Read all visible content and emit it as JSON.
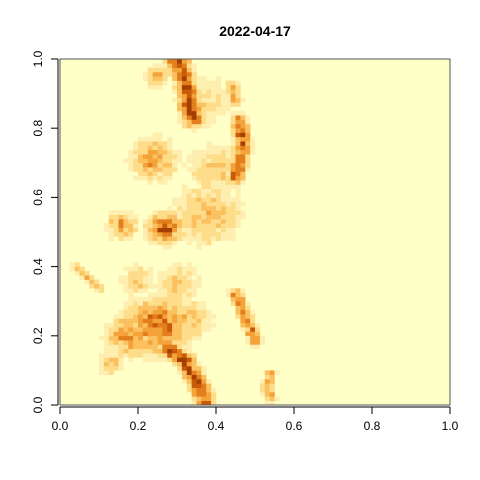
{
  "chart_data": {
    "type": "heatmap",
    "title": "2022-04-17",
    "xlabel": "",
    "ylabel": "",
    "xlim": [
      0,
      1
    ],
    "ylim": [
      0,
      1
    ],
    "x_ticks": [
      "0.0",
      "0.2",
      "0.4",
      "0.6",
      "0.8",
      "1.0"
    ],
    "y_ticks": [
      "0.0",
      "0.2",
      "0.4",
      "0.6",
      "0.8",
      "1.0"
    ],
    "background_color": "#FFFFC8",
    "colormap": [
      "#FFFFC8",
      "#FEEFB0",
      "#FDDC8A",
      "#FBC060",
      "#F4A23A",
      "#E27E1C",
      "#C85A08",
      "#A53F00"
    ],
    "grid": false,
    "features": [
      {
        "type": "line",
        "points": [
          [
            0.3,
            1.0
          ],
          [
            0.32,
            0.94
          ],
          [
            0.33,
            0.88
          ],
          [
            0.34,
            0.83
          ]
        ],
        "intensity": 0.95,
        "width": 0.018
      },
      {
        "type": "line",
        "points": [
          [
            0.46,
            0.82
          ],
          [
            0.47,
            0.76
          ],
          [
            0.46,
            0.7
          ],
          [
            0.45,
            0.66
          ]
        ],
        "intensity": 0.8,
        "width": 0.014
      },
      {
        "type": "line",
        "points": [
          [
            0.44,
            0.92
          ],
          [
            0.45,
            0.88
          ]
        ],
        "intensity": 0.55,
        "width": 0.012
      },
      {
        "type": "line",
        "points": [
          [
            0.28,
            0.16
          ],
          [
            0.32,
            0.13
          ],
          [
            0.34,
            0.09
          ],
          [
            0.36,
            0.05
          ],
          [
            0.37,
            0.01
          ]
        ],
        "intensity": 0.92,
        "width": 0.016
      },
      {
        "type": "line",
        "points": [
          [
            0.45,
            0.32
          ],
          [
            0.47,
            0.27
          ],
          [
            0.49,
            0.22
          ],
          [
            0.5,
            0.19
          ]
        ],
        "intensity": 0.68,
        "width": 0.012
      },
      {
        "type": "line",
        "points": [
          [
            0.54,
            0.09
          ],
          [
            0.53,
            0.05
          ],
          [
            0.54,
            0.02
          ]
        ],
        "intensity": 0.5,
        "width": 0.01
      },
      {
        "type": "line",
        "points": [
          [
            0.04,
            0.4
          ],
          [
            0.07,
            0.37
          ],
          [
            0.1,
            0.34
          ]
        ],
        "intensity": 0.45,
        "width": 0.008
      },
      {
        "type": "blob",
        "center": [
          0.25,
          0.23
        ],
        "radius": 0.055,
        "intensity": 0.72
      },
      {
        "type": "blob",
        "center": [
          0.18,
          0.2
        ],
        "radius": 0.04,
        "intensity": 0.62
      },
      {
        "type": "blob",
        "center": [
          0.27,
          0.51
        ],
        "radius": 0.03,
        "intensity": 0.85
      },
      {
        "type": "blob",
        "center": [
          0.16,
          0.52
        ],
        "radius": 0.025,
        "intensity": 0.6
      },
      {
        "type": "blob",
        "center": [
          0.24,
          0.71
        ],
        "radius": 0.04,
        "intensity": 0.55
      },
      {
        "type": "blob",
        "center": [
          0.25,
          0.95
        ],
        "radius": 0.02,
        "intensity": 0.55
      },
      {
        "type": "blob",
        "center": [
          0.38,
          0.55
        ],
        "radius": 0.06,
        "intensity": 0.42
      },
      {
        "type": "blob",
        "center": [
          0.4,
          0.68
        ],
        "radius": 0.05,
        "intensity": 0.35
      },
      {
        "type": "blob",
        "center": [
          0.37,
          0.88
        ],
        "radius": 0.05,
        "intensity": 0.3
      },
      {
        "type": "blob",
        "center": [
          0.3,
          0.35
        ],
        "radius": 0.04,
        "intensity": 0.35
      },
      {
        "type": "blob",
        "center": [
          0.33,
          0.25
        ],
        "radius": 0.04,
        "intensity": 0.4
      },
      {
        "type": "blob",
        "center": [
          0.2,
          0.36
        ],
        "radius": 0.03,
        "intensity": 0.35
      },
      {
        "type": "blob",
        "center": [
          0.13,
          0.12
        ],
        "radius": 0.02,
        "intensity": 0.45
      }
    ]
  }
}
